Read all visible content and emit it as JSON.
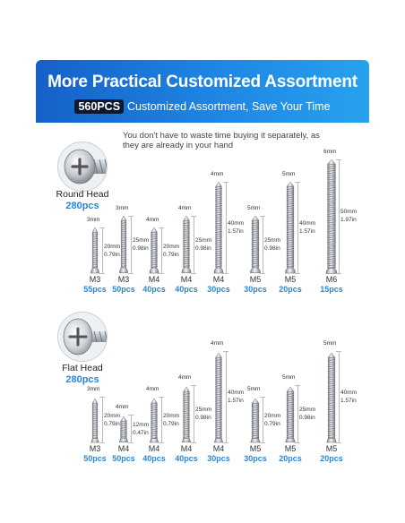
{
  "banner": {
    "title": "More Practical Customized Assortment",
    "badge": "560PCS",
    "subtitle": "Customized Assortment, Save Your Time"
  },
  "note": "You don't have to waste time buying it separately, as they are already in your hand",
  "groups": [
    {
      "head": "round",
      "name": "Round Head",
      "count": "280pcs",
      "items": [
        {
          "d": "3mm",
          "l1": "20mm",
          "l2": "0.79in",
          "size": "M3",
          "qty": "55pcs"
        },
        {
          "d": "3mm",
          "l1": "25mm",
          "l2": "0.98in",
          "size": "M3",
          "qty": "50pcs"
        },
        {
          "d": "4mm",
          "l1": "20mm",
          "l2": "0.79in",
          "size": "M4",
          "qty": "40pcs"
        },
        {
          "d": "4mm",
          "l1": "25mm",
          "l2": "0.98in",
          "size": "M4",
          "qty": "40pcs"
        },
        {
          "d": "4mm",
          "l1": "40mm",
          "l2": "1.57in",
          "size": "M4",
          "qty": "30pcs"
        },
        {
          "d": "5mm",
          "l1": "25mm",
          "l2": "0.98in",
          "size": "M5",
          "qty": "30pcs"
        },
        {
          "d": "5mm",
          "l1": "40mm",
          "l2": "1.57in",
          "size": "M5",
          "qty": "20pcs"
        },
        {
          "d": "6mm",
          "l1": "50mm",
          "l2": "1.97in",
          "size": "M6",
          "qty": "15pcs"
        }
      ]
    },
    {
      "head": "flat",
      "name": "Flat Head",
      "count": "280pcs",
      "items": [
        {
          "d": "3mm",
          "l1": "20mm",
          "l2": "0.79in",
          "size": "M3",
          "qty": "50pcs"
        },
        {
          "d": "4mm",
          "l1": "12mm",
          "l2": "0.47in",
          "size": "M4",
          "qty": "50pcs"
        },
        {
          "d": "4mm",
          "l1": "20mm",
          "l2": "0.79in",
          "size": "M4",
          "qty": "40pcs"
        },
        {
          "d": "4mm",
          "l1": "25mm",
          "l2": "0.98in",
          "size": "M4",
          "qty": "40pcs"
        },
        {
          "d": "4mm",
          "l1": "40mm",
          "l2": "1.57in",
          "size": "M4",
          "qty": "30pcs"
        },
        {
          "d": "5mm",
          "l1": "20mm",
          "l2": "0.79in",
          "size": "M5",
          "qty": "30pcs"
        },
        {
          "d": "5mm",
          "l1": "25mm",
          "l2": "0.98in",
          "size": "M5",
          "qty": "20pcs"
        },
        {
          "d": "5mm",
          "l1": "40mm",
          "l2": "1.57in",
          "size": "M5",
          "qty": "20pcs"
        }
      ]
    }
  ],
  "colors": {
    "accent": "#2b86d6",
    "banner_start": "#1560c7",
    "banner_end": "#27a2ee"
  }
}
